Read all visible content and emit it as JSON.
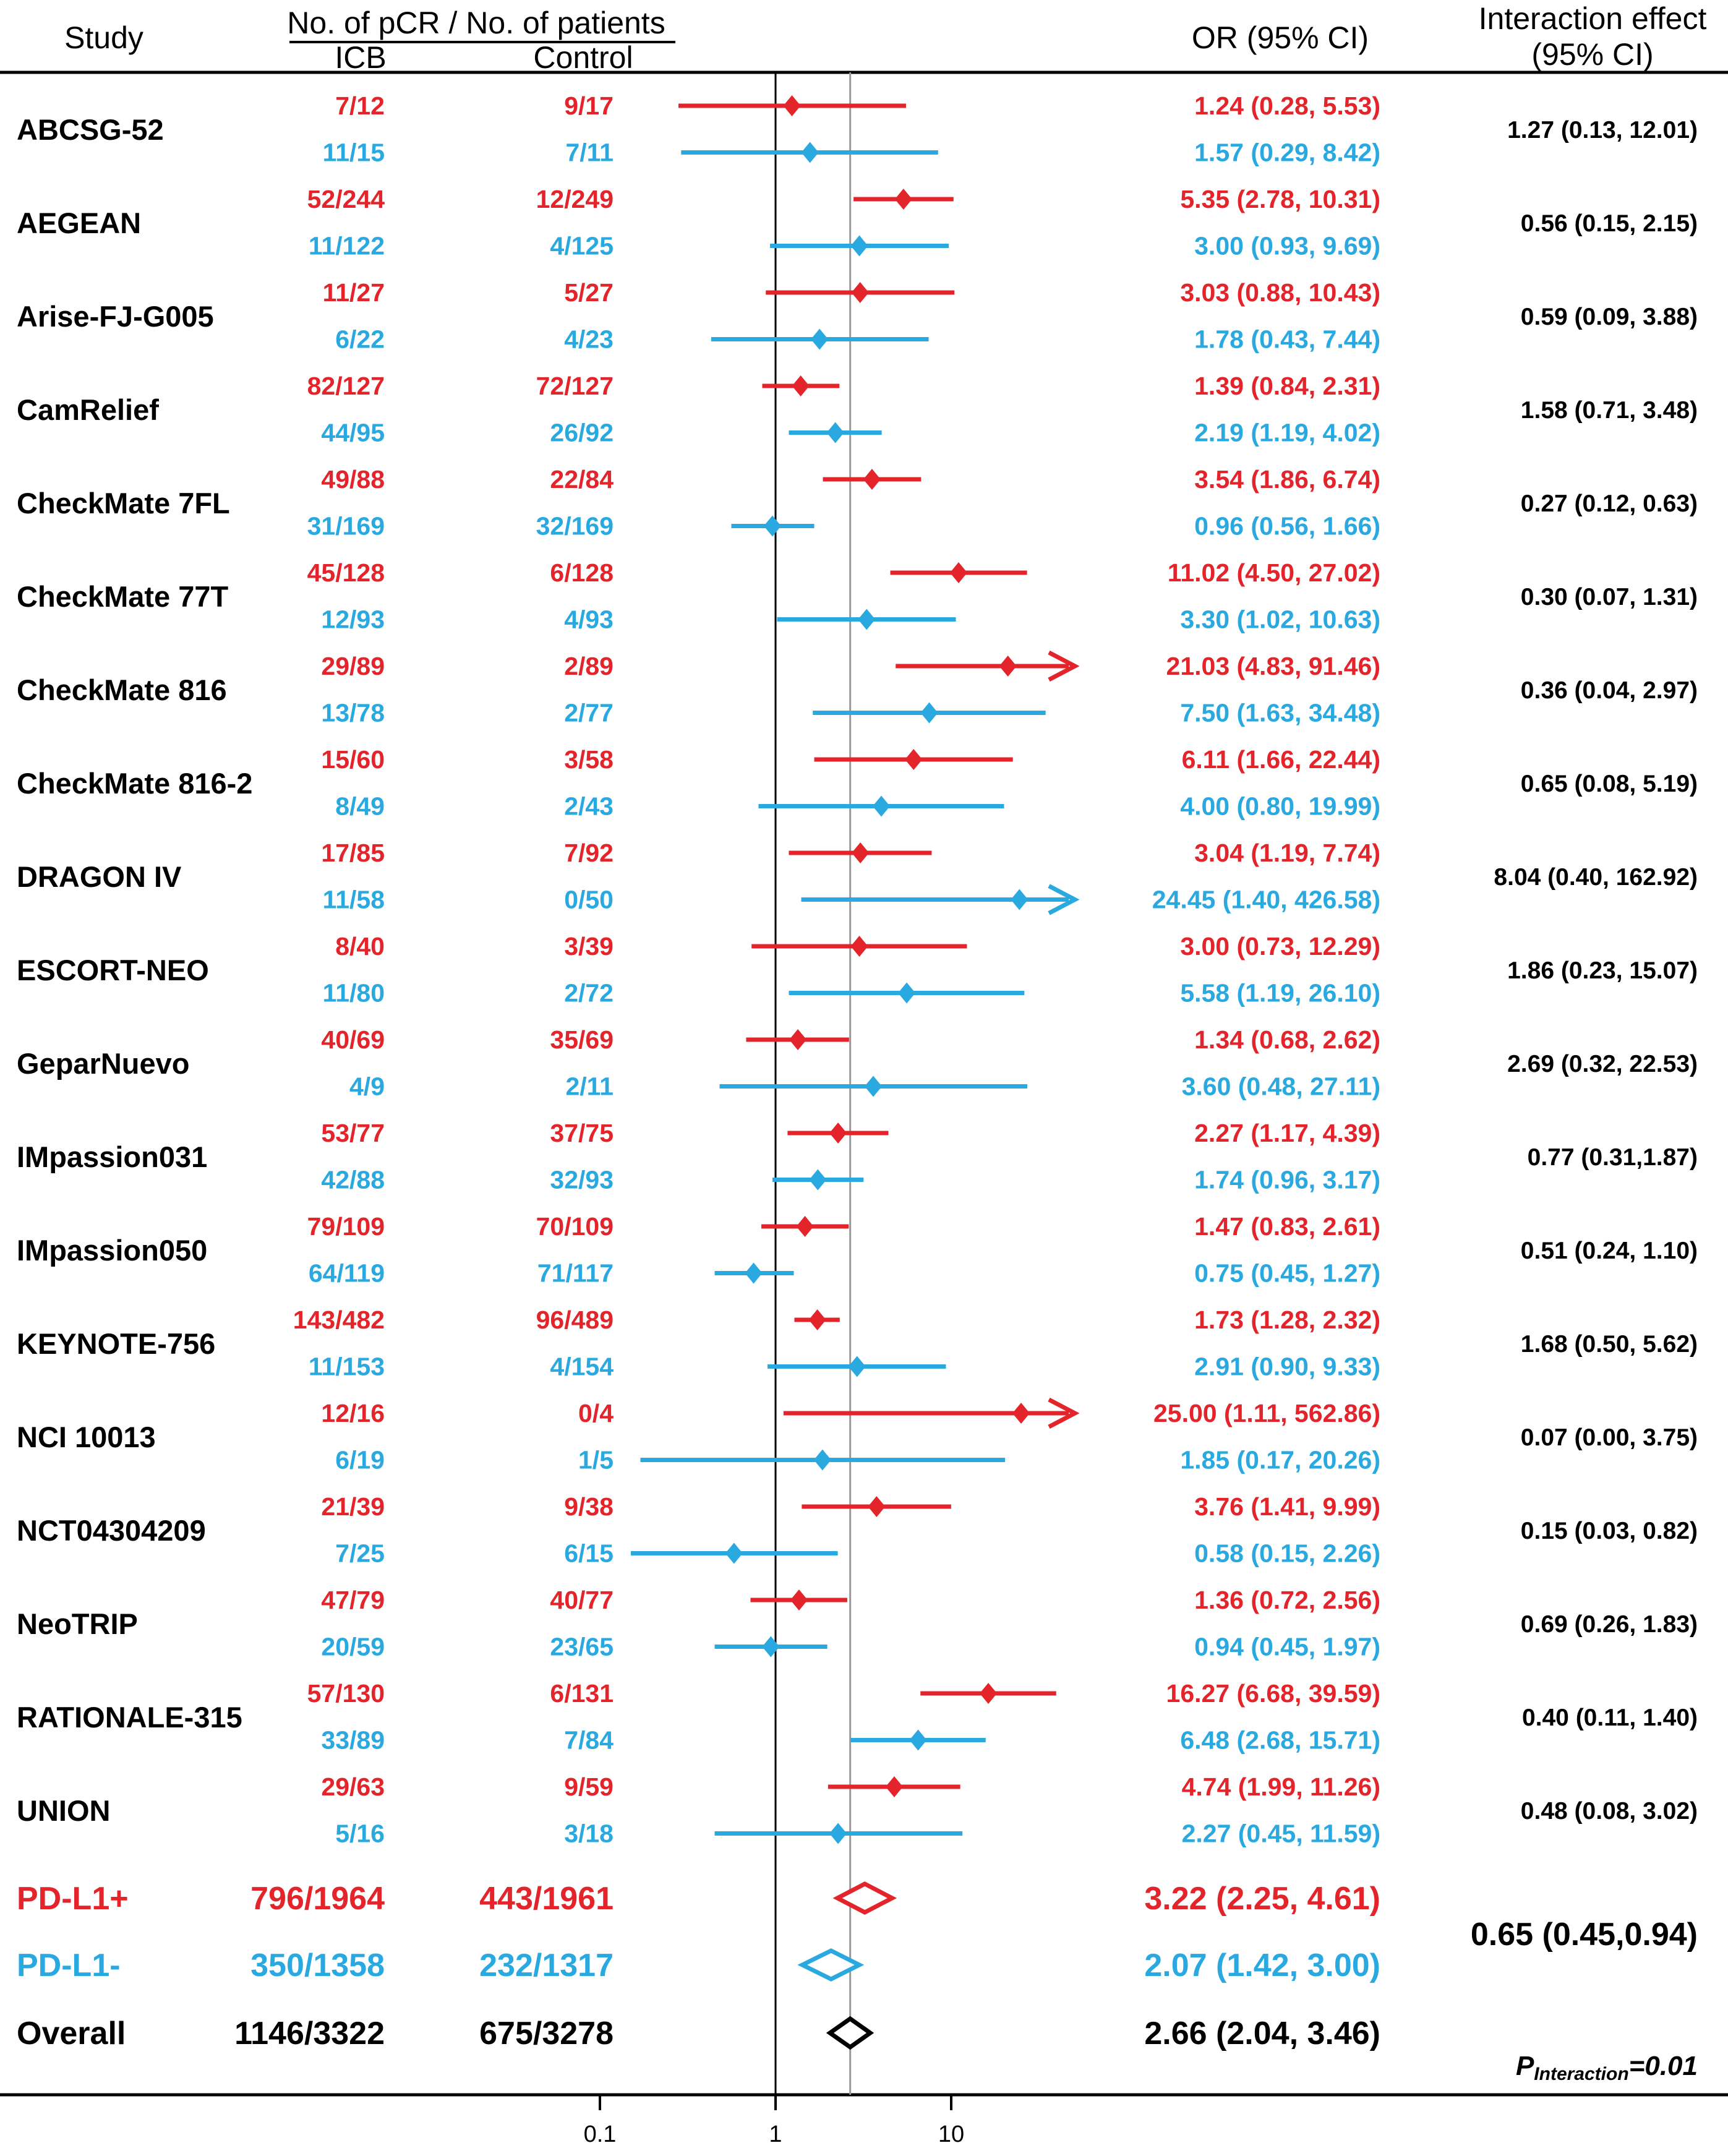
{
  "colors": {
    "pdl1_pos": "#e3242b",
    "pdl1_neg": "#29a9e0",
    "overall": "#000000",
    "reference": "#999999"
  },
  "header": {
    "study": "Study",
    "counts": "No. of pCR / No. of patients",
    "icb": "ICB",
    "control": "Control",
    "or": "OR (95% CI)",
    "interaction_line1": "Interaction effect",
    "interaction_line2": "(95% CI)"
  },
  "footer": {
    "p_label": "P",
    "p_sub": "Interaction",
    "p_value": "=0.01"
  },
  "chart_data": {
    "type": "forest",
    "x_scale": "log10",
    "x_ticks": [
      0.1,
      1,
      10
    ],
    "x_tick_labels": [
      "0.1",
      "1",
      "10"
    ],
    "null_value": 1,
    "pooled_reference_or": 2.66,
    "studies": [
      {
        "name": "ABCSG-52",
        "interaction": "1.27 (0.13, 12.01)",
        "rows": [
          {
            "group": "pos",
            "icb": "7/12",
            "control": "9/17",
            "or_text": "1.24 (0.28, 5.53)",
            "or": 1.24,
            "lo": 0.28,
            "hi": 5.53
          },
          {
            "group": "neg",
            "icb": "11/15",
            "control": "7/11",
            "or_text": "1.57 (0.29, 8.42)",
            "or": 1.57,
            "lo": 0.29,
            "hi": 8.42
          }
        ]
      },
      {
        "name": "AEGEAN",
        "interaction": "0.56 (0.15, 2.15)",
        "rows": [
          {
            "group": "pos",
            "icb": "52/244",
            "control": "12/249",
            "or_text": "5.35 (2.78, 10.31)",
            "or": 5.35,
            "lo": 2.78,
            "hi": 10.31
          },
          {
            "group": "neg",
            "icb": "11/122",
            "control": "4/125",
            "or_text": "3.00 (0.93, 9.69)",
            "or": 3.0,
            "lo": 0.93,
            "hi": 9.69
          }
        ]
      },
      {
        "name": "Arise-FJ-G005",
        "interaction": "0.59 (0.09, 3.88)",
        "rows": [
          {
            "group": "pos",
            "icb": "11/27",
            "control": "5/27",
            "or_text": "3.03 (0.88, 10.43)",
            "or": 3.03,
            "lo": 0.88,
            "hi": 10.43
          },
          {
            "group": "neg",
            "icb": "6/22",
            "control": "4/23",
            "or_text": "1.78 (0.43, 7.44)",
            "or": 1.78,
            "lo": 0.43,
            "hi": 7.44
          }
        ]
      },
      {
        "name": "CamRelief",
        "interaction": "1.58 (0.71, 3.48)",
        "rows": [
          {
            "group": "pos",
            "icb": "82/127",
            "control": "72/127",
            "or_text": "1.39 (0.84, 2.31)",
            "or": 1.39,
            "lo": 0.84,
            "hi": 2.31
          },
          {
            "group": "neg",
            "icb": "44/95",
            "control": "26/92",
            "or_text": "2.19 (1.19, 4.02)",
            "or": 2.19,
            "lo": 1.19,
            "hi": 4.02
          }
        ]
      },
      {
        "name": "CheckMate 7FL",
        "interaction": "0.27 (0.12, 0.63)",
        "rows": [
          {
            "group": "pos",
            "icb": "49/88",
            "control": "22/84",
            "or_text": "3.54 (1.86, 6.74)",
            "or": 3.54,
            "lo": 1.86,
            "hi": 6.74
          },
          {
            "group": "neg",
            "icb": "31/169",
            "control": "32/169",
            "or_text": "0.96 (0.56, 1.66)",
            "or": 0.96,
            "lo": 0.56,
            "hi": 1.66
          }
        ]
      },
      {
        "name": "CheckMate 77T",
        "interaction": "0.30 (0.07, 1.31)",
        "rows": [
          {
            "group": "pos",
            "icb": "45/128",
            "control": "6/128",
            "or_text": "11.02 (4.50, 27.02)",
            "or": 11.02,
            "lo": 4.5,
            "hi": 27.02
          },
          {
            "group": "neg",
            "icb": "12/93",
            "control": "4/93",
            "or_text": "3.30 (1.02, 10.63)",
            "or": 3.3,
            "lo": 1.02,
            "hi": 10.63
          }
        ]
      },
      {
        "name": "CheckMate 816",
        "interaction": "0.36 (0.04, 2.97)",
        "rows": [
          {
            "group": "pos",
            "icb": "29/89",
            "control": "2/89",
            "or_text": "21.03 (4.83, 91.46)",
            "or": 21.03,
            "lo": 4.83,
            "hi": 91.46
          },
          {
            "group": "neg",
            "icb": "13/78",
            "control": "2/77",
            "or_text": "7.50 (1.63, 34.48)",
            "or": 7.5,
            "lo": 1.63,
            "hi": 34.48
          }
        ]
      },
      {
        "name": "CheckMate 816-2",
        "interaction": "0.65 (0.08, 5.19)",
        "rows": [
          {
            "group": "pos",
            "icb": "15/60",
            "control": "3/58",
            "or_text": "6.11 (1.66, 22.44)",
            "or": 6.11,
            "lo": 1.66,
            "hi": 22.44
          },
          {
            "group": "neg",
            "icb": "8/49",
            "control": "2/43",
            "or_text": "4.00 (0.80, 19.99)",
            "or": 4.0,
            "lo": 0.8,
            "hi": 19.99
          }
        ]
      },
      {
        "name": "DRAGON IV",
        "interaction": "8.04 (0.40, 162.92)",
        "rows": [
          {
            "group": "pos",
            "icb": "17/85",
            "control": "7/92",
            "or_text": "3.04 (1.19, 7.74)",
            "or": 3.04,
            "lo": 1.19,
            "hi": 7.74
          },
          {
            "group": "neg",
            "icb": "11/58",
            "control": "0/50",
            "or_text": "24.45 (1.40, 426.58)",
            "or": 24.45,
            "lo": 1.4,
            "hi": 426.58
          }
        ]
      },
      {
        "name": "ESCORT-NEO",
        "interaction": "1.86 (0.23, 15.07)",
        "rows": [
          {
            "group": "pos",
            "icb": "8/40",
            "control": "3/39",
            "or_text": "3.00 (0.73, 12.29)",
            "or": 3.0,
            "lo": 0.73,
            "hi": 12.29
          },
          {
            "group": "neg",
            "icb": "11/80",
            "control": "2/72",
            "or_text": "5.58 (1.19, 26.10)",
            "or": 5.58,
            "lo": 1.19,
            "hi": 26.1
          }
        ]
      },
      {
        "name": "GeparNuevo",
        "interaction": "2.69 (0.32, 22.53)",
        "rows": [
          {
            "group": "pos",
            "icb": "40/69",
            "control": "35/69",
            "or_text": "1.34 (0.68, 2.62)",
            "or": 1.34,
            "lo": 0.68,
            "hi": 2.62
          },
          {
            "group": "neg",
            "icb": "4/9",
            "control": "2/11",
            "or_text": "3.60 (0.48, 27.11)",
            "or": 3.6,
            "lo": 0.48,
            "hi": 27.11
          }
        ]
      },
      {
        "name": "IMpassion031",
        "interaction": "0.77 (0.31,1.87)",
        "rows": [
          {
            "group": "pos",
            "icb": "53/77",
            "control": "37/75",
            "or_text": "2.27 (1.17, 4.39)",
            "or": 2.27,
            "lo": 1.17,
            "hi": 4.39
          },
          {
            "group": "neg",
            "icb": "42/88",
            "control": "32/93",
            "or_text": "1.74 (0.96, 3.17)",
            "or": 1.74,
            "lo": 0.96,
            "hi": 3.17
          }
        ]
      },
      {
        "name": "IMpassion050",
        "interaction": "0.51 (0.24, 1.10)",
        "rows": [
          {
            "group": "pos",
            "icb": "79/109",
            "control": "70/109",
            "or_text": "1.47 (0.83, 2.61)",
            "or": 1.47,
            "lo": 0.83,
            "hi": 2.61
          },
          {
            "group": "neg",
            "icb": "64/119",
            "control": "71/117",
            "or_text": "0.75 (0.45, 1.27)",
            "or": 0.75,
            "lo": 0.45,
            "hi": 1.27
          }
        ]
      },
      {
        "name": "KEYNOTE-756",
        "interaction": "1.68 (0.50, 5.62)",
        "rows": [
          {
            "group": "pos",
            "icb": "143/482",
            "control": "96/489",
            "or_text": "1.73 (1.28, 2.32)",
            "or": 1.73,
            "lo": 1.28,
            "hi": 2.32
          },
          {
            "group": "neg",
            "icb": "11/153",
            "control": "4/154",
            "or_text": "2.91 (0.90, 9.33)",
            "or": 2.91,
            "lo": 0.9,
            "hi": 9.33
          }
        ]
      },
      {
        "name": "NCI 10013",
        "interaction": "0.07 (0.00, 3.75)",
        "rows": [
          {
            "group": "pos",
            "icb": "12/16",
            "control": "0/4",
            "or_text": "25.00 (1.11, 562.86)",
            "or": 25.0,
            "lo": 1.11,
            "hi": 562.86
          },
          {
            "group": "neg",
            "icb": "6/19",
            "control": "1/5",
            "or_text": "1.85 (0.17, 20.26)",
            "or": 1.85,
            "lo": 0.17,
            "hi": 20.26
          }
        ]
      },
      {
        "name": "NCT04304209",
        "interaction": "0.15 (0.03, 0.82)",
        "rows": [
          {
            "group": "pos",
            "icb": "21/39",
            "control": "9/38",
            "or_text": "3.76 (1.41, 9.99)",
            "or": 3.76,
            "lo": 1.41,
            "hi": 9.99
          },
          {
            "group": "neg",
            "icb": "7/25",
            "control": "6/15",
            "or_text": "0.58 (0.15, 2.26)",
            "or": 0.58,
            "lo": 0.15,
            "hi": 2.26
          }
        ]
      },
      {
        "name": "NeoTRIP",
        "interaction": "0.69 (0.26, 1.83)",
        "rows": [
          {
            "group": "pos",
            "icb": "47/79",
            "control": "40/77",
            "or_text": "1.36 (0.72, 2.56)",
            "or": 1.36,
            "lo": 0.72,
            "hi": 2.56
          },
          {
            "group": "neg",
            "icb": "20/59",
            "control": "23/65",
            "or_text": "0.94 (0.45, 1.97)",
            "or": 0.94,
            "lo": 0.45,
            "hi": 1.97
          }
        ]
      },
      {
        "name": "RATIONALE-315",
        "interaction": "0.40 (0.11, 1.40)",
        "rows": [
          {
            "group": "pos",
            "icb": "57/130",
            "control": "6/131",
            "or_text": "16.27 (6.68, 39.59)",
            "or": 16.27,
            "lo": 6.68,
            "hi": 39.59
          },
          {
            "group": "neg",
            "icb": "33/89",
            "control": "7/84",
            "or_text": "6.48 (2.68, 15.71)",
            "or": 6.48,
            "lo": 2.68,
            "hi": 15.71
          }
        ]
      },
      {
        "name": "UNION",
        "interaction": "0.48 (0.08, 3.02)",
        "rows": [
          {
            "group": "pos",
            "icb": "29/63",
            "control": "9/59",
            "or_text": "4.74 (1.99, 11.26)",
            "or": 4.74,
            "lo": 1.99,
            "hi": 11.26
          },
          {
            "group": "neg",
            "icb": "5/16",
            "control": "3/18",
            "or_text": "2.27 (0.45, 11.59)",
            "or": 2.27,
            "lo": 0.45,
            "hi": 11.59
          }
        ]
      }
    ],
    "summaries": [
      {
        "label": "PD-L1+",
        "group": "pos",
        "icb": "796/1964",
        "control": "443/1961",
        "or_text": "3.22 (2.25, 4.61)",
        "or": 3.22,
        "lo": 2.25,
        "hi": 4.61
      },
      {
        "label": "PD-L1-",
        "group": "neg",
        "icb": "350/1358",
        "control": "232/1317",
        "or_text": "2.07 (1.42, 3.00)",
        "or": 2.07,
        "lo": 1.42,
        "hi": 3.0
      },
      {
        "label": "Overall",
        "group": "all",
        "icb": "1146/3322",
        "control": "675/3278",
        "or_text": "2.66 (2.04, 3.46)",
        "or": 2.66,
        "lo": 2.04,
        "hi": 3.46
      }
    ],
    "summary_interaction": "0.65 (0.45,0.94)"
  }
}
